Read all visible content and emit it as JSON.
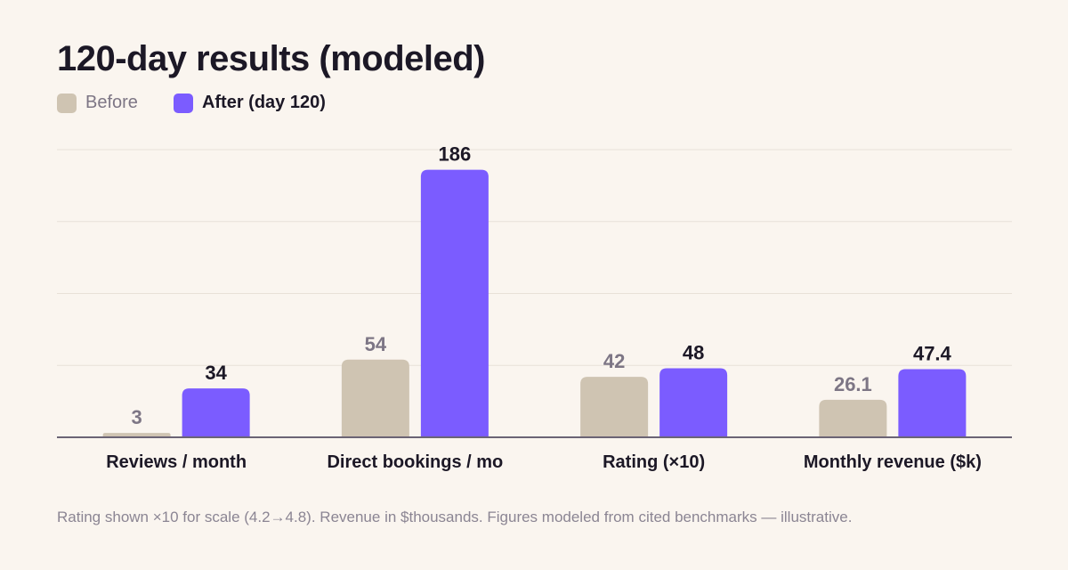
{
  "title": "120-day results (modeled)",
  "legend": {
    "before": "Before",
    "after": "After (day 120)"
  },
  "colors": {
    "before": "#cfc4b2",
    "after": "#7b5cff",
    "before_label": "#7d7685",
    "after_label": "#1c1826",
    "grid": "#e8e1d8",
    "axis": "#6b6475"
  },
  "footnote": "Rating shown ×10 for scale (4.2→4.8). Revenue in $thousands. Figures modeled from cited benchmarks — illustrative.",
  "chart_data": {
    "type": "bar",
    "title": "120-day results (modeled)",
    "categories": [
      "Reviews / month",
      "Direct bookings / mo",
      "Rating (×10)",
      "Monthly revenue ($k)"
    ],
    "series": [
      {
        "name": "Before",
        "values": [
          3,
          54,
          42,
          26.1
        ],
        "labels": [
          "3",
          "54",
          "42",
          "26.1"
        ]
      },
      {
        "name": "After (day 120)",
        "values": [
          34,
          186,
          48,
          47.4
        ],
        "labels": [
          "34",
          "186",
          "48",
          "47.4"
        ]
      }
    ],
    "ylim": [
      0,
      200
    ],
    "grid": true,
    "legend_position": "top-left"
  }
}
